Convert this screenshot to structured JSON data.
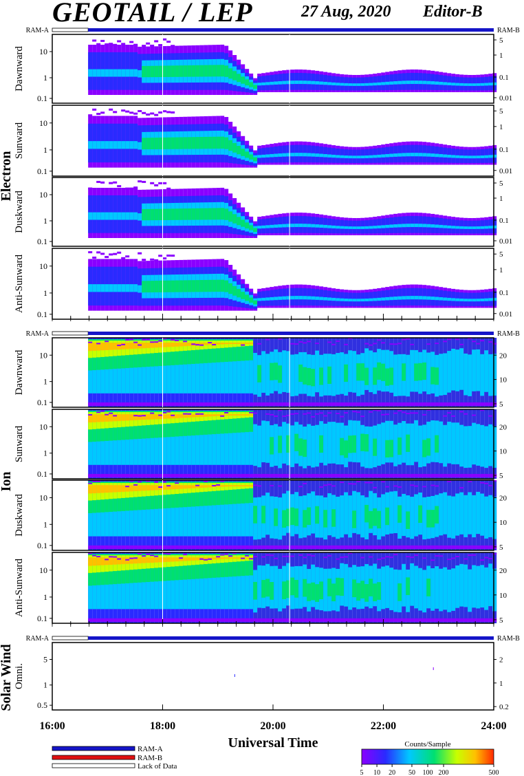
{
  "header": {
    "title": "GEOTAIL / LEP",
    "date": "27 Aug, 2020",
    "editor": "Editor-B"
  },
  "ram_labels": {
    "left": "RAM-A",
    "right": "RAM-B"
  },
  "groups": [
    {
      "label": "Electron",
      "panels": [
        "Dawnward",
        "Sunward",
        "Duskward",
        "Anti-Sunward"
      ]
    },
    {
      "label": "Ion",
      "panels": [
        "Dawnward",
        "Sunward",
        "Duskward",
        "Anti-Sunward"
      ]
    },
    {
      "label": "Solar Wind",
      "panels": [
        "Omni."
      ]
    }
  ],
  "x_axis": {
    "label": "Universal Time",
    "ticks": [
      "16:00",
      "18:00",
      "20:00",
      "22:00",
      "24:00"
    ]
  },
  "legend": {
    "items": [
      {
        "label": "RAM-A",
        "color": "#1515c8"
      },
      {
        "label": "RAM-B",
        "color": "#e01010"
      },
      {
        "label": "Lack of Data",
        "color": "#ffffff"
      }
    ]
  },
  "colorbar": {
    "title": "Counts/Sample",
    "ticks": [
      "5",
      "10",
      "20",
      "50",
      "100",
      "200",
      "500"
    ],
    "colors": [
      "#8a00ff",
      "#2a2aff",
      "#00c8ff",
      "#00e070",
      "#c8ff00",
      "#ffc000",
      "#ff2a00"
    ]
  },
  "chart_data": {
    "type": "heatmap",
    "x_range_hours": [
      16,
      24
    ],
    "data_start_hour": 16.65,
    "electron_y_left_ticks": [
      "10",
      "1",
      "0.1"
    ],
    "electron_y_right_ticks": [
      "5",
      "1",
      "0.1",
      "0.01"
    ],
    "ion_y_left_ticks": [
      "10",
      "1",
      "0.1"
    ],
    "ion_y_right_ticks": [
      "20",
      "10",
      "5"
    ],
    "solarwind_y_left_ticks": [
      "5",
      "1",
      "0.5"
    ],
    "solarwind_y_right_ticks": [
      "2",
      "1",
      "0.2"
    ]
  }
}
